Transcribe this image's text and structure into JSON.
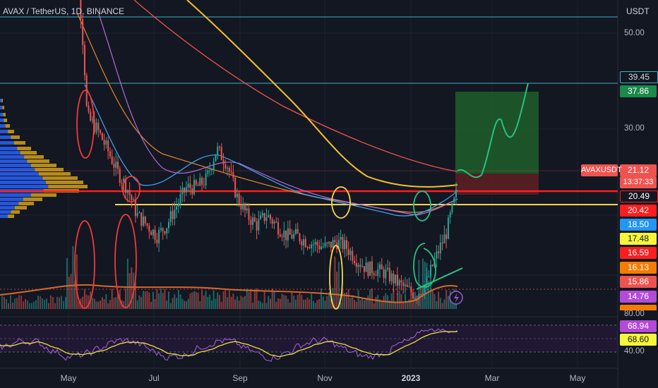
{
  "header": {
    "title": "AVAX / TetherUS, 1D, BINANCE",
    "currency": "USDT"
  },
  "symbol_tag": "AVAXUSDT",
  "countdown": "13:37:33",
  "colors": {
    "background": "#131722",
    "up": "#26a69a",
    "down": "#ef5350",
    "support_red": "#ff1e1e",
    "support_yellow": "#ffd54f",
    "rsi": "#9c5cd0",
    "rsi_ma": "#e8e03a"
  },
  "chart_data": {
    "type": "line",
    "title": "AVAX / TetherUS, 1D, BINANCE",
    "x_ticks": [
      "May",
      "Jul",
      "Sep",
      "Nov",
      "2023",
      "Mar",
      "May"
    ],
    "y_ticks": [
      "50.00",
      "30.00"
    ],
    "rsi_ticks": [
      "80.00",
      "40.00"
    ],
    "price_scale": "log",
    "series": [
      {
        "x": [
          "2022-04-25",
          "2022-05-03",
          "2022-05-10",
          "2022-05-17",
          "2022-05-24",
          "2022-05-31",
          "2022-06-07",
          "2022-06-14",
          "2022-06-21",
          "2022-06-28",
          "2022-07-05",
          "2022-07-12",
          "2022-07-19",
          "2022-07-26",
          "2022-08-02",
          "2022-08-09",
          "2022-08-16",
          "2022-08-23",
          "2022-08-30",
          "2022-09-06",
          "2022-09-13",
          "2022-09-20",
          "2022-09-27",
          "2022-10-04",
          "2022-10-11",
          "2022-10-18",
          "2022-10-25",
          "2022-11-01",
          "2022-11-08",
          "2022-11-15",
          "2022-11-22",
          "2022-11-29",
          "2022-12-06",
          "2022-12-13",
          "2022-12-20",
          "2022-12-27",
          "2023-01-03",
          "2023-01-10",
          "2023-01-17",
          "2023-01-24"
        ],
        "values": [
          80,
          70,
          32,
          30,
          27,
          24,
          22,
          19,
          18,
          17,
          18,
          20,
          22,
          22,
          23,
          27,
          25,
          21,
          19,
          18,
          19,
          18,
          17,
          17,
          16.5,
          16.2,
          16,
          16.5,
          16,
          15,
          14.3,
          14.2,
          13.9,
          13.3,
          12.8,
          12.4,
          13.2,
          15.2,
          17.2,
          21.12
        ]
      }
    ],
    "price_labels": [
      "39.45",
      "37.86",
      "21.12",
      "20.49",
      "20.42",
      "18.50",
      "17.48",
      "16.59",
      "16.13",
      "15.86",
      "14.76"
    ],
    "rsi_labels": [
      "68.94",
      "68.60"
    ],
    "support_levels": [
      17.48,
      14.8
    ],
    "long_position": {
      "entry": 17.48,
      "target": 37.86,
      "stop": 15.86
    }
  }
}
